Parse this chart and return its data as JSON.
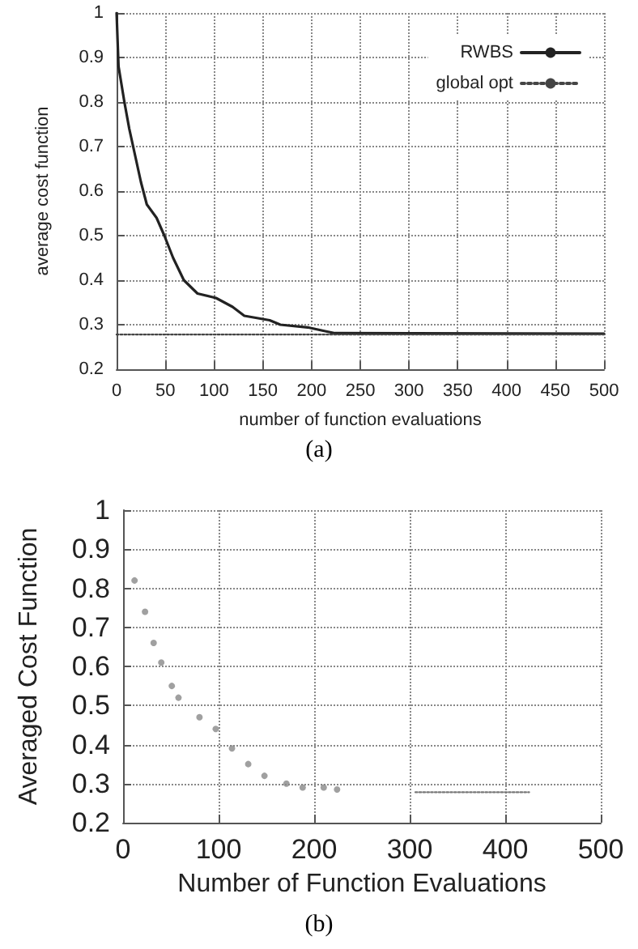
{
  "chart_data": [
    {
      "type": "line",
      "xlabel": "number of function evaluations",
      "ylabel": "average cost function",
      "annotations": [
        "(a)"
      ],
      "xlim": [
        0,
        500
      ],
      "ylim": [
        0.2,
        1
      ],
      "xticks": [
        0,
        50,
        100,
        150,
        200,
        250,
        300,
        350,
        400,
        450,
        500
      ],
      "yticks": [
        0.2,
        0.3,
        0.4,
        0.5,
        0.6,
        0.7,
        0.8,
        0.9,
        1
      ],
      "grid": true,
      "legend": "top right",
      "series": [
        {
          "name": "RWBS",
          "color": "#222222",
          "line_style": "solid",
          "x": [
            0,
            2,
            8,
            13,
            19,
            25,
            31,
            41,
            49,
            58,
            69,
            83,
            102,
            119,
            131,
            157,
            168,
            196,
            213,
            224,
            500
          ],
          "values": [
            1.0,
            0.88,
            0.8,
            0.74,
            0.68,
            0.62,
            0.57,
            0.54,
            0.5,
            0.45,
            0.4,
            0.37,
            0.36,
            0.34,
            0.32,
            0.31,
            0.3,
            0.294,
            0.286,
            0.281,
            0.28
          ]
        },
        {
          "name": "global opt",
          "color": "#444444",
          "line_style": "dotted",
          "x": [
            0,
            500
          ],
          "values": [
            0.278,
            0.278
          ]
        }
      ]
    },
    {
      "type": "scatter",
      "xlabel": "Number of Function Evaluations",
      "ylabel": "Averaged Cost Function",
      "annotations": [
        "(b)"
      ],
      "xlim": [
        0,
        500
      ],
      "ylim": [
        0.2,
        1
      ],
      "xticks": [
        0,
        100,
        200,
        300,
        400,
        500
      ],
      "yticks": [
        0.2,
        0.3,
        0.4,
        0.5,
        0.6,
        0.7,
        0.8,
        0.9,
        1
      ],
      "grid": true,
      "legend": false,
      "series": [
        {
          "color": "#888888",
          "marker": "circle",
          "x": [
            12,
            23,
            32,
            40,
            51,
            58,
            80,
            97,
            114,
            131,
            148,
            171,
            188,
            210,
            224
          ],
          "values": [
            0.82,
            0.74,
            0.66,
            0.61,
            0.55,
            0.52,
            0.47,
            0.44,
            0.39,
            0.35,
            0.32,
            0.3,
            0.29,
            0.29,
            0.285
          ]
        },
        {
          "type": "line",
          "color": "#777777",
          "line_style": "dotted",
          "x": [
            306,
            425
          ],
          "values": [
            0.278,
            0.278
          ]
        }
      ]
    }
  ]
}
